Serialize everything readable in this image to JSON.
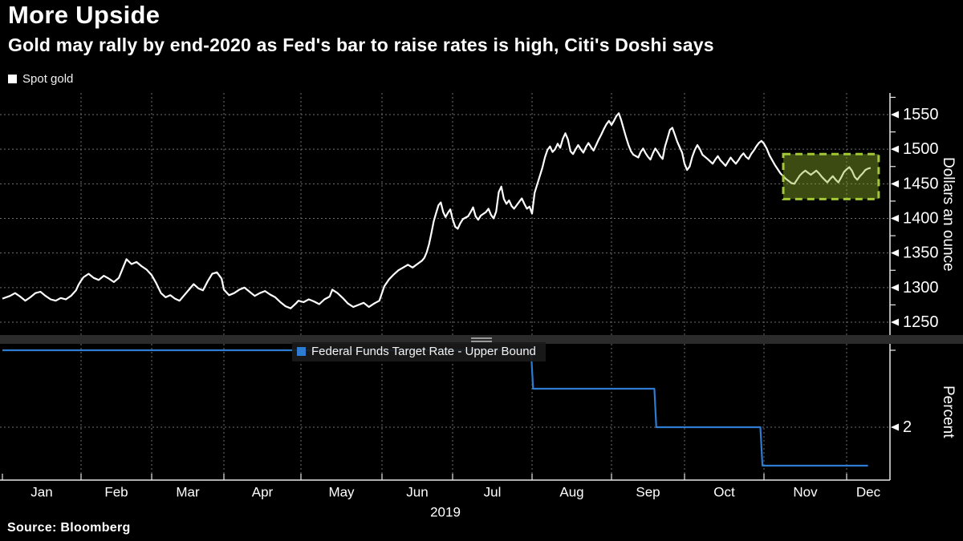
{
  "header": {
    "title": "More Upside",
    "subtitle": "Gold may rally by end-2020 as Fed's bar to raise rates is high, Citi's Doshi says"
  },
  "source": {
    "label": "Source: Bloomberg"
  },
  "x_axis": {
    "year_label": "2019",
    "months": [
      "Jan",
      "Feb",
      "Mar",
      "Apr",
      "May",
      "Jun",
      "Jul",
      "Aug",
      "Sep",
      "Oct",
      "Nov",
      "Dec"
    ]
  },
  "colors": {
    "background": "#000000",
    "text": "#ffffff",
    "gridline": "#6e6e6e",
    "axis": "#e8e8e8",
    "gold_line": "#ffffff",
    "fed_line": "#2e7bd2",
    "highlight_border": "#a2c836",
    "highlight_fill": "#8fb32a",
    "divider": "#2b2b2b"
  },
  "chart_data": [
    {
      "type": "line",
      "panel": "top",
      "legend": "Spot gold",
      "ylabel": "Dollars an ounce",
      "ylim": [
        1229,
        1582
      ],
      "yticks": [
        1250,
        1300,
        1350,
        1400,
        1450,
        1500,
        1550
      ],
      "minor_yticks": [
        1275,
        1325,
        1375,
        1425,
        1475,
        1525,
        1575
      ],
      "grid": true,
      "x_unit": "day of 2019",
      "points": [
        [
          1,
          1284
        ],
        [
          4,
          1288
        ],
        [
          6,
          1292
        ],
        [
          8,
          1287
        ],
        [
          10,
          1281
        ],
        [
          12,
          1286
        ],
        [
          14,
          1292
        ],
        [
          16,
          1294
        ],
        [
          18,
          1288
        ],
        [
          20,
          1283
        ],
        [
          22,
          1281
        ],
        [
          24,
          1285
        ],
        [
          26,
          1283
        ],
        [
          28,
          1288
        ],
        [
          30,
          1296
        ],
        [
          31,
          1304
        ],
        [
          32,
          1310
        ],
        [
          33,
          1315
        ],
        [
          35,
          1320
        ],
        [
          37,
          1314
        ],
        [
          39,
          1311
        ],
        [
          41,
          1317
        ],
        [
          43,
          1313
        ],
        [
          45,
          1308
        ],
        [
          47,
          1314
        ],
        [
          49,
          1332
        ],
        [
          50,
          1341
        ],
        [
          52,
          1334
        ],
        [
          54,
          1337
        ],
        [
          56,
          1331
        ],
        [
          58,
          1326
        ],
        [
          60,
          1318
        ],
        [
          62,
          1306
        ],
        [
          64,
          1292
        ],
        [
          66,
          1286
        ],
        [
          68,
          1289
        ],
        [
          70,
          1284
        ],
        [
          72,
          1281
        ],
        [
          74,
          1289
        ],
        [
          76,
          1297
        ],
        [
          78,
          1305
        ],
        [
          80,
          1299
        ],
        [
          82,
          1296
        ],
        [
          84,
          1309
        ],
        [
          86,
          1320
        ],
        [
          88,
          1322
        ],
        [
          90,
          1313
        ],
        [
          91,
          1297
        ],
        [
          93,
          1289
        ],
        [
          95,
          1292
        ],
        [
          97,
          1297
        ],
        [
          99,
          1300
        ],
        [
          101,
          1294
        ],
        [
          103,
          1288
        ],
        [
          105,
          1292
        ],
        [
          107,
          1295
        ],
        [
          109,
          1290
        ],
        [
          111,
          1286
        ],
        [
          113,
          1279
        ],
        [
          115,
          1273
        ],
        [
          117,
          1270
        ],
        [
          119,
          1277
        ],
        [
          120,
          1281
        ],
        [
          122,
          1279
        ],
        [
          124,
          1283
        ],
        [
          126,
          1280
        ],
        [
          128,
          1276
        ],
        [
          130,
          1283
        ],
        [
          132,
          1287
        ],
        [
          133,
          1297
        ],
        [
          135,
          1292
        ],
        [
          137,
          1285
        ],
        [
          139,
          1277
        ],
        [
          141,
          1272
        ],
        [
          143,
          1275
        ],
        [
          145,
          1278
        ],
        [
          147,
          1272
        ],
        [
          149,
          1277
        ],
        [
          151,
          1281
        ],
        [
          152,
          1292
        ],
        [
          153,
          1302
        ],
        [
          155,
          1312
        ],
        [
          157,
          1319
        ],
        [
          159,
          1325
        ],
        [
          161,
          1329
        ],
        [
          163,
          1333
        ],
        [
          165,
          1329
        ],
        [
          167,
          1334
        ],
        [
          169,
          1339
        ],
        [
          170,
          1343
        ],
        [
          171,
          1351
        ],
        [
          172,
          1363
        ],
        [
          173,
          1379
        ],
        [
          174,
          1396
        ],
        [
          175,
          1408
        ],
        [
          176,
          1419
        ],
        [
          177,
          1423
        ],
        [
          178,
          1409
        ],
        [
          179,
          1402
        ],
        [
          180,
          1408
        ],
        [
          181,
          1413
        ],
        [
          182,
          1399
        ],
        [
          183,
          1388
        ],
        [
          184,
          1385
        ],
        [
          185,
          1393
        ],
        [
          186,
          1399
        ],
        [
          188,
          1403
        ],
        [
          189,
          1409
        ],
        [
          190,
          1416
        ],
        [
          191,
          1403
        ],
        [
          192,
          1398
        ],
        [
          193,
          1404
        ],
        [
          195,
          1409
        ],
        [
          196,
          1414
        ],
        [
          197,
          1405
        ],
        [
          198,
          1400
        ],
        [
          199,
          1410
        ],
        [
          200,
          1438
        ],
        [
          201,
          1446
        ],
        [
          202,
          1428
        ],
        [
          203,
          1421
        ],
        [
          204,
          1426
        ],
        [
          205,
          1418
        ],
        [
          206,
          1414
        ],
        [
          207,
          1419
        ],
        [
          208,
          1424
        ],
        [
          209,
          1429
        ],
        [
          210,
          1421
        ],
        [
          211,
          1414
        ],
        [
          212,
          1417
        ],
        [
          213,
          1407
        ],
        [
          214,
          1437
        ],
        [
          215,
          1449
        ],
        [
          216,
          1461
        ],
        [
          217,
          1473
        ],
        [
          218,
          1488
        ],
        [
          219,
          1499
        ],
        [
          220,
          1504
        ],
        [
          221,
          1496
        ],
        [
          222,
          1500
        ],
        [
          223,
          1508
        ],
        [
          224,
          1502
        ],
        [
          225,
          1515
        ],
        [
          226,
          1523
        ],
        [
          227,
          1514
        ],
        [
          228,
          1497
        ],
        [
          229,
          1493
        ],
        [
          230,
          1500
        ],
        [
          231,
          1506
        ],
        [
          232,
          1500
        ],
        [
          233,
          1495
        ],
        [
          234,
          1503
        ],
        [
          235,
          1509
        ],
        [
          236,
          1503
        ],
        [
          237,
          1498
        ],
        [
          238,
          1506
        ],
        [
          239,
          1514
        ],
        [
          240,
          1521
        ],
        [
          241,
          1529
        ],
        [
          242,
          1536
        ],
        [
          243,
          1541
        ],
        [
          244,
          1535
        ],
        [
          245,
          1541
        ],
        [
          246,
          1548
        ],
        [
          247,
          1552
        ],
        [
          248,
          1542
        ],
        [
          249,
          1529
        ],
        [
          250,
          1517
        ],
        [
          251,
          1506
        ],
        [
          252,
          1497
        ],
        [
          253,
          1492
        ],
        [
          255,
          1488
        ],
        [
          256,
          1496
        ],
        [
          257,
          1501
        ],
        [
          258,
          1494
        ],
        [
          259,
          1489
        ],
        [
          260,
          1485
        ],
        [
          261,
          1494
        ],
        [
          262,
          1501
        ],
        [
          263,
          1496
        ],
        [
          264,
          1490
        ],
        [
          265,
          1486
        ],
        [
          266,
          1504
        ],
        [
          267,
          1516
        ],
        [
          268,
          1528
        ],
        [
          269,
          1531
        ],
        [
          270,
          1521
        ],
        [
          271,
          1511
        ],
        [
          272,
          1503
        ],
        [
          273,
          1495
        ],
        [
          274,
          1479
        ],
        [
          275,
          1470
        ],
        [
          276,
          1475
        ],
        [
          277,
          1489
        ],
        [
          278,
          1499
        ],
        [
          279,
          1506
        ],
        [
          280,
          1500
        ],
        [
          281,
          1492
        ],
        [
          283,
          1486
        ],
        [
          285,
          1479
        ],
        [
          286,
          1485
        ],
        [
          287,
          1490
        ],
        [
          288,
          1484
        ],
        [
          289,
          1480
        ],
        [
          290,
          1476
        ],
        [
          291,
          1482
        ],
        [
          292,
          1488
        ],
        [
          293,
          1483
        ],
        [
          294,
          1479
        ],
        [
          295,
          1484
        ],
        [
          296,
          1490
        ],
        [
          297,
          1494
        ],
        [
          298,
          1489
        ],
        [
          299,
          1486
        ],
        [
          300,
          1493
        ],
        [
          301,
          1498
        ],
        [
          302,
          1504
        ],
        [
          303,
          1509
        ],
        [
          304,
          1512
        ],
        [
          305,
          1508
        ],
        [
          306,
          1501
        ],
        [
          307,
          1491
        ],
        [
          309,
          1477
        ],
        [
          311,
          1465
        ],
        [
          313,
          1457
        ],
        [
          315,
          1451
        ],
        [
          316,
          1450
        ],
        [
          317,
          1456
        ],
        [
          318,
          1462
        ],
        [
          319,
          1466
        ],
        [
          320,
          1469
        ],
        [
          321,
          1466
        ],
        [
          322,
          1463
        ],
        [
          323,
          1466
        ],
        [
          324,
          1469
        ],
        [
          325,
          1465
        ],
        [
          326,
          1460
        ],
        [
          327,
          1456
        ],
        [
          328,
          1452
        ],
        [
          329,
          1457
        ],
        [
          330,
          1461
        ],
        [
          331,
          1456
        ],
        [
          332,
          1452
        ],
        [
          333,
          1459
        ],
        [
          334,
          1467
        ],
        [
          335,
          1471
        ],
        [
          336,
          1474
        ],
        [
          337,
          1469
        ],
        [
          338,
          1460
        ],
        [
          339,
          1456
        ],
        [
          340,
          1461
        ],
        [
          341,
          1465
        ],
        [
          342,
          1470
        ],
        [
          343,
          1472
        ],
        [
          344,
          1473
        ]
      ],
      "highlight_box": {
        "meaning": "highlighted recent trading range, Nov to mid-Dec",
        "day_start": 312,
        "day_end": 347,
        "value_low": 1428,
        "value_high": 1493
      }
    },
    {
      "type": "step-line",
      "panel": "bottom",
      "legend": "Federal Funds Target Rate - Upper Bound",
      "ylabel": "Percent",
      "ylim": [
        1.68,
        2.56
      ],
      "yticks": [
        2
      ],
      "minor_yticks": [
        2.5
      ],
      "grid": true,
      "x_unit": "day of 2019",
      "steps": [
        {
          "period": "Jan 1 - Jul 31",
          "value": 2.5
        },
        {
          "period": "Aug 1 - Sep 18",
          "value": 2.25
        },
        {
          "period": "Sep 19 - Oct 30",
          "value": 2.0
        },
        {
          "period": "Oct 31 - mid Dec",
          "value": 1.75
        }
      ],
      "points": [
        [
          1,
          2.5
        ],
        [
          212.6,
          2.5
        ],
        [
          213.4,
          2.25
        ],
        [
          261.6,
          2.25
        ],
        [
          262.4,
          2.0
        ],
        [
          303.6,
          2.0
        ],
        [
          304.4,
          1.75
        ],
        [
          343,
          1.75
        ]
      ]
    }
  ]
}
